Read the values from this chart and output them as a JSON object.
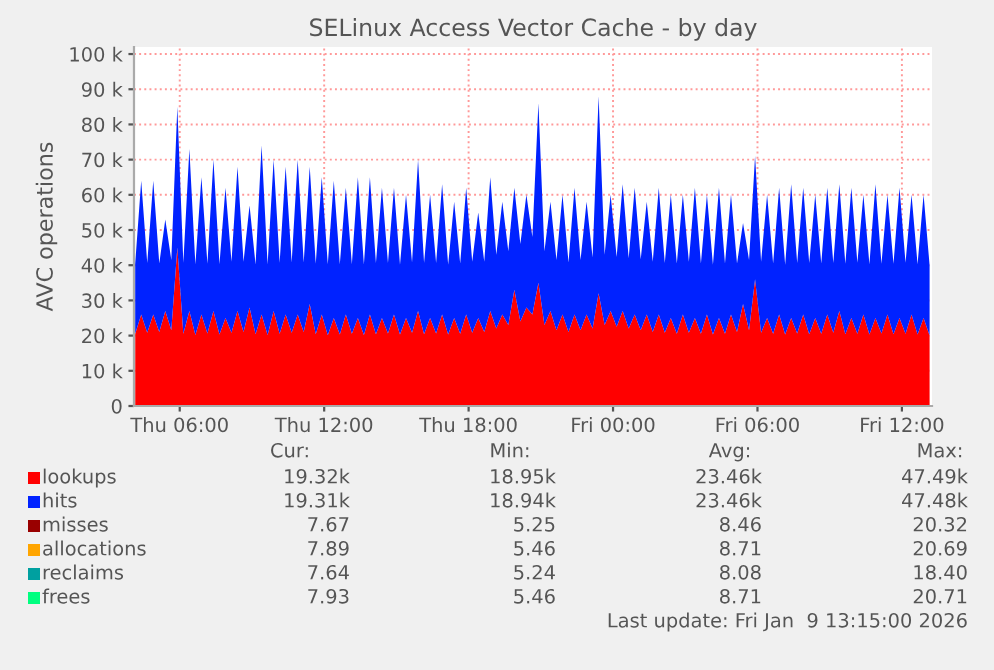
{
  "chart_data": {
    "type": "area",
    "title": "SELinux Access Vector Cache - by day",
    "ylabel": "AVC operations",
    "stacked": true,
    "grid": true,
    "legend": "bottom",
    "x": [
      "2026-01-08T04:09",
      "2026-01-08T04:24",
      "2026-01-08T04:39",
      "2026-01-08T04:54",
      "2026-01-08T05:09",
      "2026-01-08T05:24",
      "2026-01-08T05:39",
      "2026-01-08T05:54",
      "2026-01-08T06:09",
      "2026-01-08T06:24",
      "2026-01-08T06:39",
      "2026-01-08T06:54",
      "2026-01-08T07:09",
      "2026-01-08T07:24",
      "2026-01-08T07:39",
      "2026-01-08T07:54",
      "2026-01-08T08:09",
      "2026-01-08T08:24",
      "2026-01-08T08:39",
      "2026-01-08T08:54",
      "2026-01-08T09:09",
      "2026-01-08T09:24",
      "2026-01-08T09:39",
      "2026-01-08T09:54",
      "2026-01-08T10:09",
      "2026-01-08T10:24",
      "2026-01-08T10:39",
      "2026-01-08T10:54",
      "2026-01-08T11:09",
      "2026-01-08T11:24",
      "2026-01-08T11:39",
      "2026-01-08T11:54",
      "2026-01-08T12:09",
      "2026-01-08T12:24",
      "2026-01-08T12:39",
      "2026-01-08T12:54",
      "2026-01-08T13:09",
      "2026-01-08T13:24",
      "2026-01-08T13:39",
      "2026-01-08T13:54",
      "2026-01-08T14:09",
      "2026-01-08T14:24",
      "2026-01-08T14:39",
      "2026-01-08T14:54",
      "2026-01-08T15:09",
      "2026-01-08T15:24",
      "2026-01-08T15:39",
      "2026-01-08T15:54",
      "2026-01-08T16:09",
      "2026-01-08T16:24",
      "2026-01-08T16:39",
      "2026-01-08T16:54",
      "2026-01-08T17:09",
      "2026-01-08T17:24",
      "2026-01-08T17:39",
      "2026-01-08T17:54",
      "2026-01-08T18:09",
      "2026-01-08T18:24",
      "2026-01-08T18:39",
      "2026-01-08T18:54",
      "2026-01-08T19:09",
      "2026-01-08T19:24",
      "2026-01-08T19:39",
      "2026-01-08T19:54",
      "2026-01-08T20:09",
      "2026-01-08T20:24",
      "2026-01-08T20:39",
      "2026-01-08T20:54",
      "2026-01-08T21:09",
      "2026-01-08T21:24",
      "2026-01-08T21:39",
      "2026-01-08T21:54",
      "2026-01-08T22:09",
      "2026-01-08T22:24",
      "2026-01-08T22:39",
      "2026-01-08T22:54",
      "2026-01-08T23:09",
      "2026-01-08T23:24",
      "2026-01-08T23:39",
      "2026-01-08T23:54",
      "2026-01-09T00:09",
      "2026-01-09T00:24",
      "2026-01-09T00:39",
      "2026-01-09T00:54",
      "2026-01-09T01:09",
      "2026-01-09T01:24",
      "2026-01-09T01:39",
      "2026-01-09T01:54",
      "2026-01-09T02:09",
      "2026-01-09T02:24",
      "2026-01-09T02:39",
      "2026-01-09T02:54",
      "2026-01-09T03:09",
      "2026-01-09T03:24",
      "2026-01-09T03:39",
      "2026-01-09T03:54",
      "2026-01-09T04:09",
      "2026-01-09T04:24",
      "2026-01-09T04:39",
      "2026-01-09T04:54",
      "2026-01-09T05:09",
      "2026-01-09T05:24",
      "2026-01-09T05:39",
      "2026-01-09T05:54",
      "2026-01-09T06:09",
      "2026-01-09T06:24",
      "2026-01-09T06:39",
      "2026-01-09T06:54",
      "2026-01-09T07:09",
      "2026-01-09T07:24",
      "2026-01-09T07:39",
      "2026-01-09T07:54",
      "2026-01-09T08:09",
      "2026-01-09T08:24",
      "2026-01-09T08:39",
      "2026-01-09T08:54",
      "2026-01-09T09:09",
      "2026-01-09T09:24",
      "2026-01-09T09:39",
      "2026-01-09T09:54",
      "2026-01-09T10:09",
      "2026-01-09T10:24",
      "2026-01-09T10:39",
      "2026-01-09T10:54",
      "2026-01-09T11:09",
      "2026-01-09T11:24",
      "2026-01-09T11:39",
      "2026-01-09T11:54",
      "2026-01-09T12:09",
      "2026-01-09T12:24",
      "2026-01-09T12:39",
      "2026-01-09T12:54",
      "2026-01-09T13:09"
    ],
    "xlim": [
      "2026-01-08T04:06",
      "2026-01-09T13:15"
    ],
    "xticks": [
      {
        "value": "2026-01-08T06:00",
        "label": "Thu 06:00"
      },
      {
        "value": "2026-01-08T12:00",
        "label": "Thu 12:00"
      },
      {
        "value": "2026-01-08T18:00",
        "label": "Thu 18:00"
      },
      {
        "value": "2026-01-09T00:00",
        "label": "Fri 00:00"
      },
      {
        "value": "2026-01-09T06:00",
        "label": "Fri 06:00"
      },
      {
        "value": "2026-01-09T12:00",
        "label": "Fri 12:00"
      }
    ],
    "ylim": [
      0,
      102000
    ],
    "yticks": [
      0,
      {
        "value": 10000,
        "label": "10 k"
      },
      {
        "value": 20000,
        "label": "20 k"
      },
      {
        "value": 30000,
        "label": "30 k"
      },
      {
        "value": 40000,
        "label": "40 k"
      },
      {
        "value": 50000,
        "label": "50 k"
      },
      {
        "value": 60000,
        "label": "60 k"
      },
      {
        "value": 70000,
        "label": "70 k"
      },
      {
        "value": 80000,
        "label": "80 k"
      },
      {
        "value": 90000,
        "label": "90 k"
      },
      {
        "value": 100000,
        "label": "100 k"
      }
    ],
    "series": [
      {
        "name": "lookups",
        "color": "#ff0000",
        "values": [
          20500,
          26000,
          20800,
          26000,
          21000,
          27000,
          21500,
          45000,
          20500,
          27000,
          20200,
          26000,
          20600,
          27000,
          20300,
          25000,
          20800,
          27000,
          21000,
          28000,
          20400,
          26000,
          20200,
          27000,
          20500,
          26000,
          20800,
          26000,
          21000,
          29000,
          20400,
          26000,
          20100,
          25000,
          20300,
          26000,
          20500,
          25000,
          20200,
          26000,
          20400,
          25000,
          20600,
          26000,
          20300,
          25000,
          20800,
          27000,
          20400,
          25000,
          20600,
          26000,
          20300,
          25000,
          20500,
          26000,
          20800,
          25000,
          21000,
          27000,
          22000,
          26000,
          23000,
          33000,
          24000,
          28000,
          26000,
          35000,
          23000,
          27000,
          21500,
          26000,
          21000,
          26000,
          21500,
          26000,
          22000,
          32000,
          23000,
          27000,
          22500,
          27000,
          22000,
          26000,
          21500,
          26000,
          21000,
          26000,
          20800,
          25000,
          20500,
          26000,
          20800,
          25000,
          20500,
          26000,
          20300,
          25000,
          20500,
          26000,
          21000,
          29000,
          21500,
          36000,
          20800,
          25000,
          20500,
          26000,
          20300,
          25000,
          20600,
          26000,
          20400,
          25000,
          20500,
          26000,
          20800,
          27000,
          20400,
          25000,
          20500,
          26000,
          20300,
          25000,
          20600,
          26000,
          20400,
          25000,
          20500,
          26000,
          20300,
          25000,
          20000
        ]
      },
      {
        "name": "hits",
        "color": "#0022ff",
        "values": [
          20000,
          38000,
          19800,
          38000,
          19500,
          26000,
          20000,
          40000,
          20200,
          46000,
          20000,
          39000,
          19800,
          43000,
          20000,
          37000,
          20200,
          41000,
          20000,
          29000,
          19800,
          48000,
          20000,
          43000,
          20200,
          42000,
          20000,
          44000,
          19800,
          39000,
          20000,
          39000,
          20200,
          39000,
          20000,
          36000,
          19800,
          40000,
          20000,
          39000,
          20200,
          37000,
          20000,
          36000,
          19800,
          35000,
          20000,
          43000,
          20200,
          35000,
          20000,
          37000,
          19800,
          33000,
          20000,
          36000,
          20200,
          30000,
          20000,
          38000,
          21000,
          32000,
          21000,
          29000,
          22000,
          32000,
          22000,
          51000,
          21000,
          31000,
          20000,
          34000,
          19800,
          36000,
          20000,
          32000,
          20200,
          56000,
          20000,
          33000,
          19800,
          36000,
          20000,
          36000,
          20200,
          32000,
          20000,
          36000,
          19800,
          35000,
          20000,
          34000,
          20200,
          37000,
          20000,
          34000,
          19800,
          37000,
          20000,
          34000,
          19500,
          23000,
          20000,
          35000,
          20200,
          35000,
          20000,
          36000,
          19800,
          38000,
          20000,
          36000,
          20200,
          35000,
          20000,
          36000,
          19800,
          36000,
          20000,
          37000,
          20200,
          34000,
          20000,
          38000,
          19800,
          34000,
          20000,
          37000,
          20200,
          34000,
          20000,
          35000,
          20000
        ]
      },
      {
        "name": "misses",
        "color": "#990000",
        "values": [
          null,
          null,
          null,
          null,
          null,
          null,
          null,
          null,
          null,
          null,
          null,
          null,
          null,
          null,
          null,
          null,
          null,
          null,
          null,
          null,
          null,
          null,
          null,
          null,
          null,
          null,
          null,
          null,
          null,
          null,
          null,
          null,
          null,
          null,
          null,
          null,
          null,
          null,
          null,
          null,
          null,
          null,
          null,
          null,
          null,
          null,
          null,
          null,
          null,
          null,
          null,
          null,
          null,
          null,
          null,
          null,
          null,
          null,
          null,
          null,
          null,
          null,
          null,
          null,
          null,
          null,
          null,
          null,
          null,
          null,
          null,
          null,
          null,
          null,
          null,
          null,
          null,
          null,
          null,
          null,
          null,
          null,
          null,
          null,
          null,
          null,
          null,
          null,
          null,
          null,
          null,
          null,
          null,
          null,
          null,
          null,
          null,
          null,
          null,
          null,
          null,
          null,
          null,
          null,
          null,
          null,
          null,
          null,
          null,
          null,
          null,
          null,
          null,
          null,
          null,
          null,
          null,
          null,
          null,
          null,
          null,
          null,
          null,
          null,
          null,
          null,
          null,
          null,
          null,
          null,
          null,
          null,
          null
        ]
      },
      {
        "name": "allocations",
        "color": "#ffa500",
        "values": [
          null,
          null,
          null,
          null,
          null,
          null,
          null,
          null,
          null,
          null,
          null,
          null,
          null,
          null,
          null,
          null,
          null,
          null,
          null,
          null,
          null,
          null,
          null,
          null,
          null,
          null,
          null,
          null,
          null,
          null,
          null,
          null,
          null,
          null,
          null,
          null,
          null,
          null,
          null,
          null,
          null,
          null,
          null,
          null,
          null,
          null,
          null,
          null,
          null,
          null,
          null,
          null,
          null,
          null,
          null,
          null,
          null,
          null,
          null,
          null,
          null,
          null,
          null,
          null,
          null,
          null,
          null,
          null,
          null,
          null,
          null,
          null,
          null,
          null,
          null,
          null,
          null,
          null,
          null,
          null,
          null,
          null,
          null,
          null,
          null,
          null,
          null,
          null,
          null,
          null,
          null,
          null,
          null,
          null,
          null,
          null,
          null,
          null,
          null,
          null,
          null,
          null,
          null,
          null,
          null,
          null,
          null,
          null,
          null,
          null,
          null,
          null,
          null,
          null,
          null,
          null,
          null,
          null,
          null,
          null,
          null,
          null,
          null,
          null,
          null,
          null,
          null,
          null,
          null,
          null,
          null,
          null,
          null
        ]
      },
      {
        "name": "reclaims",
        "color": "#00a0a0",
        "values": [
          null,
          null,
          null,
          null,
          null,
          null,
          null,
          null,
          null,
          null,
          null,
          null,
          null,
          null,
          null,
          null,
          null,
          null,
          null,
          null,
          null,
          null,
          null,
          null,
          null,
          null,
          null,
          null,
          null,
          null,
          null,
          null,
          null,
          null,
          null,
          null,
          null,
          null,
          null,
          null,
          null,
          null,
          null,
          null,
          null,
          null,
          null,
          null,
          null,
          null,
          null,
          null,
          null,
          null,
          null,
          null,
          null,
          null,
          null,
          null,
          null,
          null,
          null,
          null,
          null,
          null,
          null,
          null,
          null,
          null,
          null,
          null,
          null,
          null,
          null,
          null,
          null,
          null,
          null,
          null,
          null,
          null,
          null,
          null,
          null,
          null,
          null,
          null,
          null,
          null,
          null,
          null,
          null,
          null,
          null,
          null,
          null,
          null,
          null,
          null,
          null,
          null,
          null,
          null,
          null,
          null,
          null,
          null,
          null,
          null,
          null,
          null,
          null,
          null,
          null,
          null,
          null,
          null,
          null,
          null,
          null,
          null,
          null,
          null,
          null,
          null,
          null,
          null,
          null,
          null,
          null,
          null,
          null
        ]
      },
      {
        "name": "frees",
        "color": "#00ff80",
        "values": [
          null,
          null,
          null,
          null,
          null,
          null,
          null,
          null,
          null,
          null,
          null,
          null,
          null,
          null,
          null,
          null,
          null,
          null,
          null,
          null,
          null,
          null,
          null,
          null,
          null,
          null,
          null,
          null,
          null,
          null,
          null,
          null,
          null,
          null,
          null,
          null,
          null,
          null,
          null,
          null,
          null,
          null,
          null,
          null,
          null,
          null,
          null,
          null,
          null,
          null,
          null,
          null,
          null,
          null,
          null,
          null,
          null,
          null,
          null,
          null,
          null,
          null,
          null,
          null,
          null,
          null,
          null,
          null,
          null,
          null,
          null,
          null,
          null,
          null,
          null,
          null,
          null,
          null,
          null,
          null,
          null,
          null,
          null,
          null,
          null,
          null,
          null,
          null,
          null,
          null,
          null,
          null,
          null,
          null,
          null,
          null,
          null,
          null,
          null,
          null,
          null,
          null,
          null,
          null,
          null,
          null,
          null,
          null,
          null,
          null,
          null,
          null,
          null,
          null,
          null,
          null,
          null,
          null,
          null,
          null,
          null,
          null,
          null,
          null,
          null,
          null,
          null,
          null,
          null,
          null,
          null,
          null,
          null
        ]
      }
    ],
    "annotations": [
      "Cur:",
      "Min:",
      "Avg:",
      "Max:",
      "19.32k",
      "18.95k",
      "23.46k",
      "47.49k",
      "19.31k",
      "18.94k",
      "23.46k",
      "47.48k",
      "7.67",
      "5.25",
      "8.46",
      "20.32",
      "7.89",
      "5.46",
      "8.71",
      "20.69",
      "7.64",
      "5.24",
      "8.08",
      "18.40",
      "7.93",
      "5.46",
      "8.71",
      "20.71",
      "Last update: Fri Jan  9 13:15:00 2026"
    ]
  }
}
